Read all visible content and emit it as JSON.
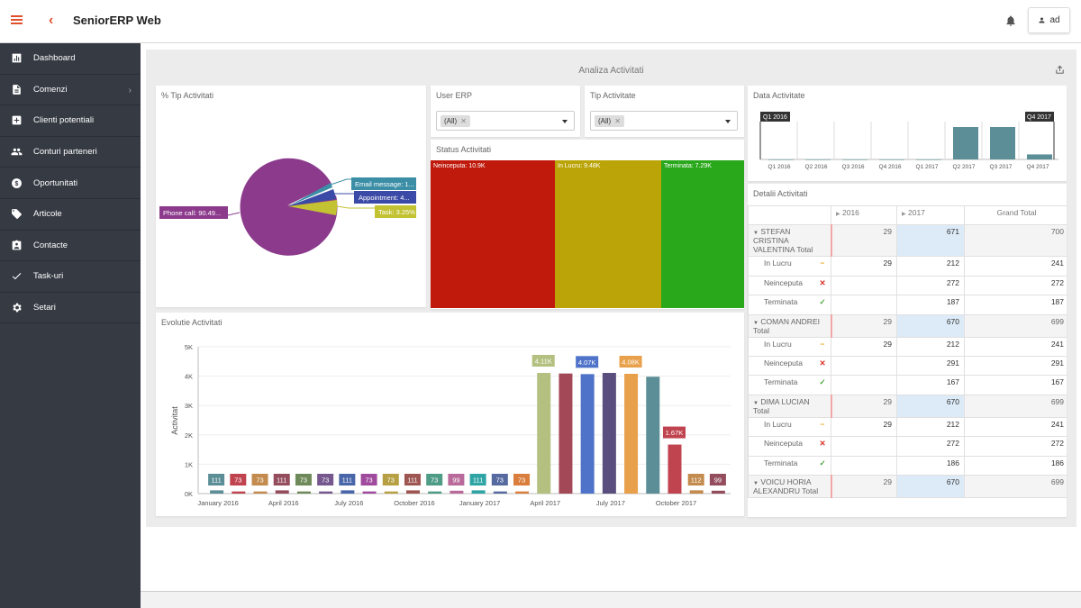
{
  "app": {
    "title": "SeniorERP Web",
    "user": "ad"
  },
  "nav": [
    "Dashboard",
    "Comenzi",
    "Clienti potentiali",
    "Conturi parteneri",
    "Oportunitati",
    "Articole",
    "Contacte",
    "Task-uri",
    "Setari"
  ],
  "dashboard": {
    "title": "Analiza Activitati",
    "pie": {
      "title": "% Tip Activitati",
      "labels": {
        "phone": "Phone call: 90.49...",
        "email": "Email message: 1...",
        "appointment": "Appointment: 4...",
        "task": "Task: 3.25%"
      }
    },
    "user_erp": {
      "title": "User ERP",
      "value": "(All)"
    },
    "tip_activitate": {
      "title": "Tip Activitate",
      "value": "(All)"
    },
    "status": {
      "title": "Status Activitati",
      "neinceputa": "Neinceputa: 10.9K",
      "in_lucru": "In Lucru: 9.48K",
      "terminata": "Terminata: 7.29K"
    },
    "data_activitate": {
      "title": "Data Activitate",
      "start_label": "Q1 2016",
      "end_label": "Q4 2017"
    },
    "evolutie": {
      "title": "Evolutie Activitati"
    },
    "pivot": {
      "title": "Detalii Activitati",
      "headers": [
        "2016",
        "2017",
        "Grand Total"
      ],
      "rows": [
        {
          "label": "STEFAN CRISTINA VALENTINA Total",
          "v": [
            "29",
            "671",
            "700"
          ],
          "total": true
        },
        {
          "label": "In Lucru",
          "v": [
            "29",
            "212",
            "241"
          ]
        },
        {
          "label": "Neinceputa",
          "v": [
            "",
            "272",
            "272"
          ]
        },
        {
          "label": "Terminata",
          "v": [
            "",
            "187",
            "187"
          ]
        },
        {
          "label": "COMAN ANDREI Total",
          "v": [
            "29",
            "670",
            "699"
          ],
          "total": true
        },
        {
          "label": "In Lucru",
          "v": [
            "29",
            "212",
            "241"
          ]
        },
        {
          "label": "Neinceputa",
          "v": [
            "",
            "291",
            "291"
          ]
        },
        {
          "label": "Terminata",
          "v": [
            "",
            "167",
            "167"
          ]
        },
        {
          "label": "DIMA LUCIAN Total",
          "v": [
            "29",
            "670",
            "699"
          ],
          "total": true
        },
        {
          "label": "In Lucru",
          "v": [
            "29",
            "212",
            "241"
          ]
        },
        {
          "label": "Neinceputa",
          "v": [
            "",
            "272",
            "272"
          ]
        },
        {
          "label": "Terminata",
          "v": [
            "",
            "186",
            "186"
          ]
        },
        {
          "label": "VOICU HORIA ALEXANDRU Total",
          "v": [
            "29",
            "670",
            "699"
          ],
          "total": true
        }
      ]
    }
  },
  "chart_data": [
    {
      "type": "pie",
      "title": "% Tip Activitati",
      "slices": [
        {
          "name": "Phone call",
          "value": 90.49
        },
        {
          "name": "Email message",
          "value": 1.6
        },
        {
          "name": "Appointment",
          "value": 4.66
        },
        {
          "name": "Task",
          "value": 3.25
        }
      ]
    },
    {
      "type": "bar",
      "title": "Status Activitati",
      "categories": [
        "Neinceputa",
        "In Lucru",
        "Terminata"
      ],
      "values": [
        10.9,
        9.48,
        7.29
      ],
      "unit": "K"
    },
    {
      "type": "bar",
      "title": "Data Activitate",
      "categories": [
        "Q1 2016",
        "Q2 2016",
        "Q3 2016",
        "Q4 2016",
        "Q1 2017",
        "Q2 2017",
        "Q3 2017",
        "Q4 2017"
      ],
      "values": [
        0.01,
        0.01,
        0.01,
        0.01,
        0.01,
        12.3,
        12.3,
        1.9
      ]
    },
    {
      "type": "bar",
      "title": "Evolutie Activitati",
      "ylabel": "Activitat",
      "ylim": [
        0,
        5000
      ],
      "yticks": [
        "0K",
        "1K",
        "2K",
        "3K",
        "4K",
        "5K"
      ],
      "xticks": [
        "January 2016",
        "April 2016",
        "July 2016",
        "October 2016",
        "January 2017",
        "April 2017",
        "July 2017",
        "October 2017"
      ],
      "values": [
        111,
        73,
        73,
        111,
        73,
        73,
        111,
        73,
        73,
        111,
        73,
        99,
        111,
        73,
        73,
        4110,
        4090,
        4070,
        4110,
        4080,
        3980,
        1670,
        112,
        99
      ],
      "labels": [
        "111",
        "73",
        "73",
        "111",
        "73",
        "73",
        "111",
        "73",
        "73",
        "111",
        "73",
        "99",
        "111",
        "73",
        "73",
        "4.11K",
        "",
        "4.07K",
        "",
        "4.08K",
        "",
        "1.67K",
        "112",
        "99"
      ],
      "colors": [
        "#5b8e96",
        "#c0444f",
        "#c38b4e",
        "#944d5d",
        "#6f8a5a",
        "#76588e",
        "#4966a8",
        "#a04a9e",
        "#b7a043",
        "#9e5653",
        "#4e9b86",
        "#b86a9a",
        "#2fa4a4",
        "#566aa0",
        "#d97e3c",
        "#b3c080",
        "#a34857",
        "#4e73c8",
        "#5a4e7e",
        "#e8a04b",
        "#5b8e96",
        "#c0444f",
        "#c38b4e",
        "#944d5d"
      ]
    }
  ]
}
